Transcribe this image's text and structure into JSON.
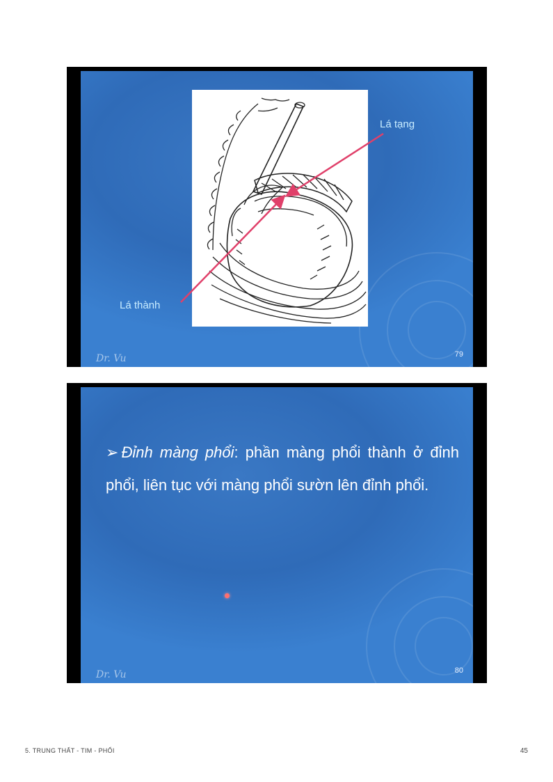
{
  "slides": [
    {
      "number": "79",
      "signature": "Dr. Vu",
      "labels": {
        "visceral": "Lá tạng",
        "parietal": "Lá thành"
      },
      "illustration_icon": "pericardium-anatomy-drawing",
      "colors": {
        "arrow": "#e0406a",
        "label": "#c8ecff"
      }
    },
    {
      "number": "80",
      "signature": "Dr. Vu",
      "bullet_symbol": "➢",
      "term": "Đỉnh màng phổi",
      "text": ": phần màng phổi thành ở đỉnh phổi, liên tục với màng phổi sườn lên đỉnh phổi.",
      "colors": {
        "laser": "#ff6f6f"
      }
    }
  ],
  "footer": {
    "section": "5. TRUNG THẤT - TIM - PHỔI",
    "page_number": "45"
  },
  "colors": {
    "slide_bg": "#2f6bb8",
    "frame": "#000000"
  }
}
